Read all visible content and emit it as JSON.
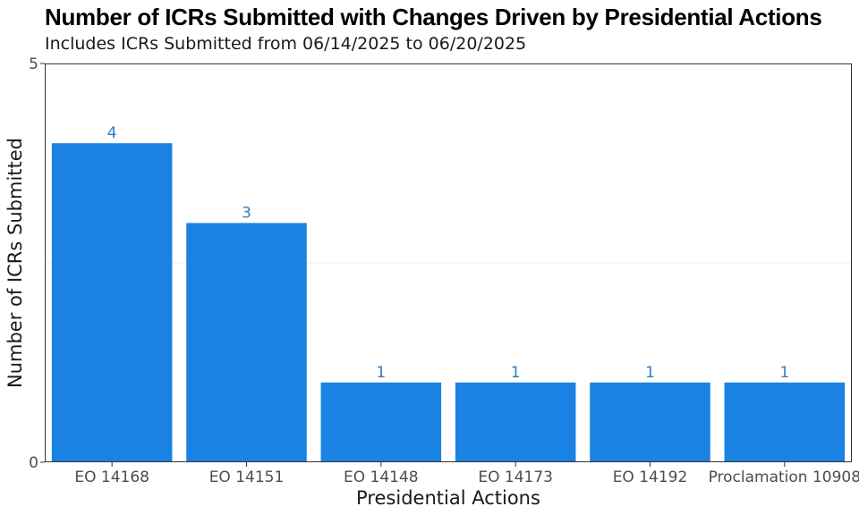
{
  "chart_data": {
    "type": "bar",
    "title": "Number of ICRs Submitted with Changes Driven by Presidential Actions",
    "subtitle": "Includes ICRs Submitted from 06/14/2025 to 06/20/2025",
    "xlabel": "Presidential Actions",
    "ylabel": "Number of ICRs Submitted",
    "categories": [
      "EO 14168",
      "EO 14151",
      "EO 14148",
      "EO 14173",
      "EO 14192",
      "Proclamation 10908"
    ],
    "values": [
      4,
      3,
      1,
      1,
      1,
      1
    ],
    "data_labels": [
      "4",
      "3",
      "1",
      "1",
      "1",
      "1"
    ],
    "ylim": [
      0,
      5
    ],
    "y_ticks": [
      "0",
      "5"
    ],
    "grid": true,
    "bar_color": "#1a82e2",
    "label_color": "#2e7dc2"
  }
}
